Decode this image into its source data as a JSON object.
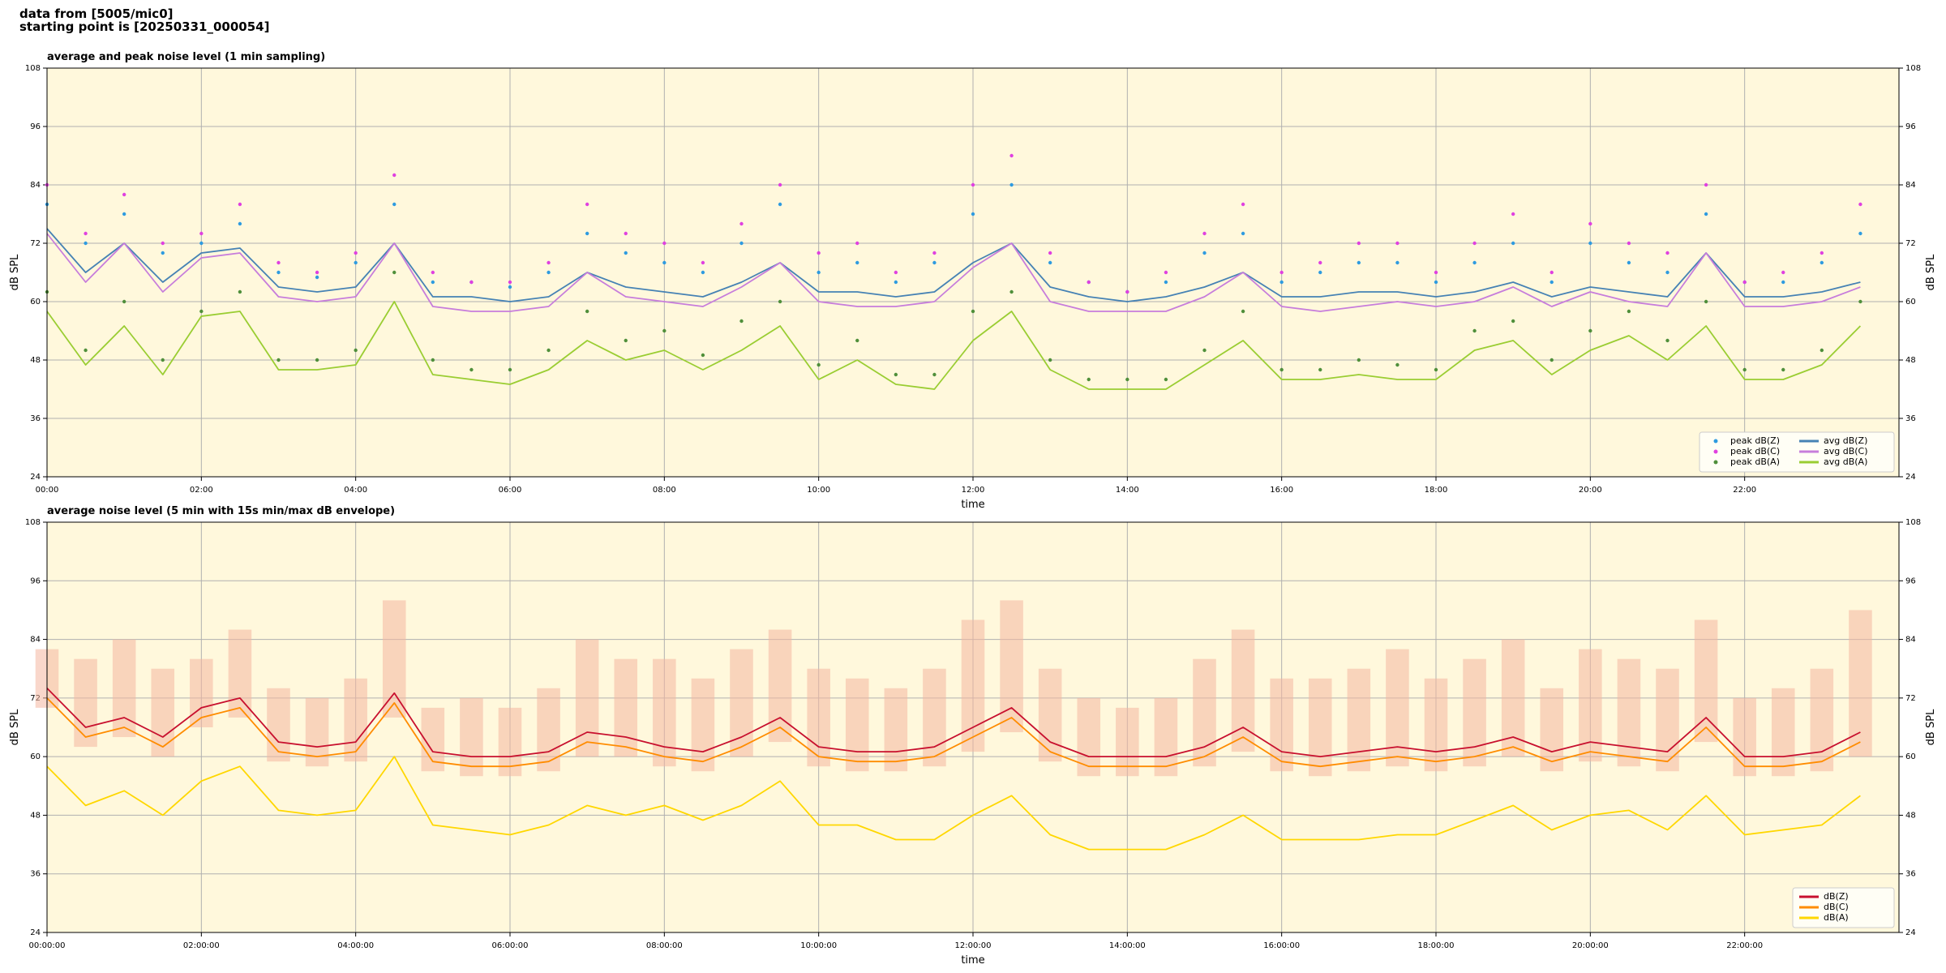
{
  "title_lines": [
    "data from [5005/mic0]",
    "starting point is [20250331_000054]"
  ],
  "chart_data": [
    {
      "type": "line",
      "title": "average and peak noise level (1 min sampling)",
      "xlabel": "time",
      "ylabel": "dB SPL",
      "background": "#fff8dc",
      "grid": true,
      "legend": "lower right",
      "legend_columns": 2,
      "xlim": [
        0,
        24
      ],
      "ylim": [
        24,
        108
      ],
      "yticks": [
        24,
        36,
        48,
        60,
        72,
        84,
        96,
        108
      ],
      "xticks": [
        {
          "value": 0,
          "label": "00:00"
        },
        {
          "value": 2,
          "label": "02:00"
        },
        {
          "value": 4,
          "label": "04:00"
        },
        {
          "value": 6,
          "label": "06:00"
        },
        {
          "value": 8,
          "label": "08:00"
        },
        {
          "value": 10,
          "label": "10:00"
        },
        {
          "value": 12,
          "label": "12:00"
        },
        {
          "value": 14,
          "label": "14:00"
        },
        {
          "value": 16,
          "label": "16:00"
        },
        {
          "value": 18,
          "label": "18:00"
        },
        {
          "value": 20,
          "label": "20:00"
        },
        {
          "value": 22,
          "label": "22:00"
        }
      ],
      "x": [
        0,
        0.5,
        1,
        1.5,
        2,
        2.5,
        3,
        3.5,
        4,
        4.5,
        5,
        5.5,
        6,
        6.5,
        7,
        7.5,
        8,
        8.5,
        9,
        9.5,
        10,
        10.5,
        11,
        11.5,
        12,
        12.5,
        13,
        13.5,
        14,
        14.5,
        15,
        15.5,
        16,
        16.5,
        17,
        17.5,
        18,
        18.5,
        19,
        19.5,
        20,
        20.5,
        21,
        21.5,
        22,
        22.5,
        23,
        23.5
      ],
      "series": [
        {
          "name": "peak dB(Z)",
          "marker": "dot",
          "color": "#2e9be0",
          "values": [
            80,
            72,
            78,
            70,
            72,
            76,
            66,
            65,
            68,
            80,
            64,
            64,
            63,
            66,
            74,
            70,
            68,
            66,
            72,
            80,
            66,
            68,
            64,
            68,
            78,
            84,
            68,
            64,
            62,
            64,
            70,
            74,
            64,
            66,
            68,
            68,
            64,
            68,
            72,
            64,
            72,
            68,
            66,
            78,
            64,
            64,
            68,
            74
          ]
        },
        {
          "name": "peak dB(C)",
          "marker": "dot",
          "color": "#e040e0",
          "values": [
            84,
            74,
            82,
            72,
            74,
            80,
            68,
            66,
            70,
            86,
            66,
            64,
            64,
            68,
            80,
            74,
            72,
            68,
            76,
            84,
            70,
            72,
            66,
            70,
            84,
            90,
            70,
            64,
            62,
            66,
            74,
            80,
            66,
            68,
            72,
            72,
            66,
            72,
            78,
            66,
            76,
            72,
            70,
            84,
            64,
            66,
            70,
            80
          ]
        },
        {
          "name": "peak dB(A)",
          "marker": "dot",
          "color": "#4f8f3a",
          "values": [
            62,
            50,
            60,
            48,
            58,
            62,
            48,
            48,
            50,
            66,
            48,
            46,
            46,
            50,
            58,
            52,
            54,
            49,
            56,
            60,
            47,
            52,
            45,
            45,
            58,
            62,
            48,
            44,
            44,
            44,
            50,
            58,
            46,
            46,
            48,
            47,
            46,
            54,
            56,
            48,
            54,
            58,
            52,
            60,
            46,
            46,
            50,
            60
          ]
        },
        {
          "name": "avg dB(Z)",
          "marker": "line",
          "color": "#4682b4",
          "values": [
            75,
            66,
            72,
            64,
            70,
            71,
            63,
            62,
            63,
            72,
            61,
            61,
            60,
            61,
            66,
            63,
            62,
            61,
            64,
            68,
            62,
            62,
            61,
            62,
            68,
            72,
            63,
            61,
            60,
            61,
            63,
            66,
            61,
            61,
            62,
            62,
            61,
            62,
            64,
            61,
            63,
            62,
            61,
            70,
            61,
            61,
            62,
            64
          ]
        },
        {
          "name": "avg dB(C)",
          "marker": "line",
          "color": "#c77ddb",
          "values": [
            74,
            64,
            72,
            62,
            69,
            70,
            61,
            60,
            61,
            72,
            59,
            58,
            58,
            59,
            66,
            61,
            60,
            59,
            63,
            68,
            60,
            59,
            59,
            60,
            67,
            72,
            60,
            58,
            58,
            58,
            61,
            66,
            59,
            58,
            59,
            60,
            59,
            60,
            63,
            59,
            62,
            60,
            59,
            70,
            59,
            59,
            60,
            63
          ]
        },
        {
          "name": "avg dB(A)",
          "marker": "line",
          "color": "#9acd32",
          "values": [
            58,
            47,
            55,
            45,
            57,
            58,
            46,
            46,
            47,
            60,
            45,
            44,
            43,
            46,
            52,
            48,
            50,
            46,
            50,
            55,
            44,
            48,
            43,
            42,
            52,
            58,
            46,
            42,
            42,
            42,
            47,
            52,
            44,
            44,
            45,
            44,
            44,
            50,
            52,
            45,
            50,
            53,
            48,
            55,
            44,
            44,
            47,
            55
          ]
        }
      ]
    },
    {
      "type": "line",
      "title": "average noise level (5 min with 15s min/max dB envelope)",
      "xlabel": "time",
      "ylabel": "dB SPL",
      "background": "#fff8dc",
      "grid": true,
      "legend": "lower right",
      "legend_columns": 1,
      "xlim": [
        0,
        24
      ],
      "ylim": [
        24,
        108
      ],
      "yticks": [
        24,
        36,
        48,
        60,
        72,
        84,
        96,
        108
      ],
      "xticks": [
        {
          "value": 0,
          "label": "00:00:00"
        },
        {
          "value": 2,
          "label": "02:00:00"
        },
        {
          "value": 4,
          "label": "04:00:00"
        },
        {
          "value": 6,
          "label": "06:00:00"
        },
        {
          "value": 8,
          "label": "08:00:00"
        },
        {
          "value": 10,
          "label": "10:00:00"
        },
        {
          "value": 12,
          "label": "12:00:00"
        },
        {
          "value": 14,
          "label": "14:00:00"
        },
        {
          "value": 16,
          "label": "16:00:00"
        },
        {
          "value": 18,
          "label": "18:00:00"
        },
        {
          "value": 20,
          "label": "20:00:00"
        },
        {
          "value": 22,
          "label": "22:00:00"
        }
      ],
      "x": [
        0,
        0.5,
        1,
        1.5,
        2,
        2.5,
        3,
        3.5,
        4,
        4.5,
        5,
        5.5,
        6,
        6.5,
        7,
        7.5,
        8,
        8.5,
        9,
        9.5,
        10,
        10.5,
        11,
        11.5,
        12,
        12.5,
        13,
        13.5,
        14,
        14.5,
        15,
        15.5,
        16,
        16.5,
        17,
        17.5,
        18,
        18.5,
        19,
        19.5,
        20,
        20.5,
        21,
        21.5,
        22,
        22.5,
        23,
        23.5
      ],
      "envelope": {
        "color": "#f4b6a0",
        "upper": [
          82,
          80,
          84,
          78,
          80,
          86,
          74,
          72,
          76,
          92,
          70,
          72,
          70,
          74,
          84,
          80,
          80,
          76,
          82,
          86,
          78,
          76,
          74,
          78,
          88,
          92,
          78,
          72,
          70,
          72,
          80,
          86,
          76,
          76,
          78,
          82,
          76,
          80,
          84,
          74,
          82,
          80,
          78,
          88,
          72,
          74,
          78,
          90
        ],
        "lower": [
          70,
          62,
          64,
          60,
          66,
          68,
          59,
          58,
          59,
          68,
          57,
          56,
          56,
          57,
          60,
          60,
          58,
          57,
          60,
          63,
          58,
          57,
          57,
          58,
          61,
          65,
          59,
          56,
          56,
          56,
          58,
          61,
          57,
          56,
          57,
          58,
          57,
          58,
          60,
          57,
          59,
          58,
          57,
          63,
          56,
          56,
          57,
          60
        ]
      },
      "series": [
        {
          "name": "dB(Z)",
          "marker": "line",
          "color": "#c8102e",
          "values": [
            74,
            66,
            68,
            64,
            70,
            72,
            63,
            62,
            63,
            73,
            61,
            60,
            60,
            61,
            65,
            64,
            62,
            61,
            64,
            68,
            62,
            61,
            61,
            62,
            66,
            70,
            63,
            60,
            60,
            60,
            62,
            66,
            61,
            60,
            61,
            62,
            61,
            62,
            64,
            61,
            63,
            62,
            61,
            68,
            60,
            60,
            61,
            65
          ]
        },
        {
          "name": "dB(C)",
          "marker": "line",
          "color": "#ff8c00",
          "values": [
            72,
            64,
            66,
            62,
            68,
            70,
            61,
            60,
            61,
            71,
            59,
            58,
            58,
            59,
            63,
            62,
            60,
            59,
            62,
            66,
            60,
            59,
            59,
            60,
            64,
            68,
            61,
            58,
            58,
            58,
            60,
            64,
            59,
            58,
            59,
            60,
            59,
            60,
            62,
            59,
            61,
            60,
            59,
            66,
            58,
            58,
            59,
            63
          ]
        },
        {
          "name": "dB(A)",
          "marker": "line",
          "color": "#ffd700",
          "values": [
            58,
            50,
            53,
            48,
            55,
            58,
            49,
            48,
            49,
            60,
            46,
            45,
            44,
            46,
            50,
            48,
            50,
            47,
            50,
            55,
            46,
            46,
            43,
            43,
            48,
            52,
            44,
            41,
            41,
            41,
            44,
            48,
            43,
            43,
            43,
            44,
            44,
            47,
            50,
            45,
            48,
            49,
            45,
            52,
            44,
            45,
            46,
            52
          ]
        }
      ]
    }
  ]
}
